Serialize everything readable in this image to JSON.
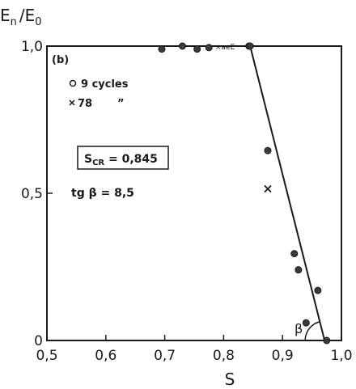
{
  "chart_data": {
    "type": "scatter",
    "panel_label": "(b)",
    "ylabel_main": "E",
    "ylabel_num_sub": "n",
    "ylabel_sep": "/E",
    "ylabel_den_sub": "0",
    "xlabel": "S",
    "xlim": [
      0.5,
      1.0
    ],
    "ylim": [
      0,
      1.0
    ],
    "x_ticks": [
      0.5,
      0.6,
      0.7,
      0.8,
      0.9,
      1.0
    ],
    "x_tick_labels": [
      "0,5",
      "0,6",
      "0,7",
      "0,8",
      "0,9",
      "1,0"
    ],
    "y_ticks": [
      0,
      0.5,
      1.0
    ],
    "y_tick_labels": [
      "0",
      "0,5",
      "1,0"
    ],
    "grid": false,
    "legend": {
      "placement": "top-left",
      "entries": [
        {
          "marker": "circle",
          "text": "9 cycles"
        },
        {
          "marker": "x",
          "text": "78",
          "ditto": "”"
        }
      ]
    },
    "annotations": {
      "scr_prefix": "S",
      "scr_sub": "CR",
      "scr_value": " = 0,845",
      "tg_prefix": "tg β = 8,5",
      "angle_label": "β",
      "cluster_label": "×aеЕ"
    },
    "series": [
      {
        "marker": "circle",
        "points": [
          {
            "x": 0.695,
            "y": 0.99
          },
          {
            "x": 0.73,
            "y": 1.0
          },
          {
            "x": 0.755,
            "y": 0.99
          },
          {
            "x": 0.775,
            "y": 0.995
          },
          {
            "x": 0.843,
            "y": 1.0
          },
          {
            "x": 0.845,
            "y": 1.0
          },
          {
            "x": 0.875,
            "y": 0.645
          },
          {
            "x": 0.92,
            "y": 0.295
          },
          {
            "x": 0.927,
            "y": 0.24
          },
          {
            "x": 0.94,
            "y": 0.06
          },
          {
            "x": 0.96,
            "y": 0.17
          },
          {
            "x": 0.975,
            "y": 0.0
          }
        ]
      },
      {
        "marker": "x",
        "points": [
          {
            "x": 0.875,
            "y": 0.515
          }
        ]
      }
    ],
    "fit_line": {
      "x": [
        0.845,
        0.9714
      ],
      "y": [
        1.0,
        0.0
      ]
    }
  }
}
